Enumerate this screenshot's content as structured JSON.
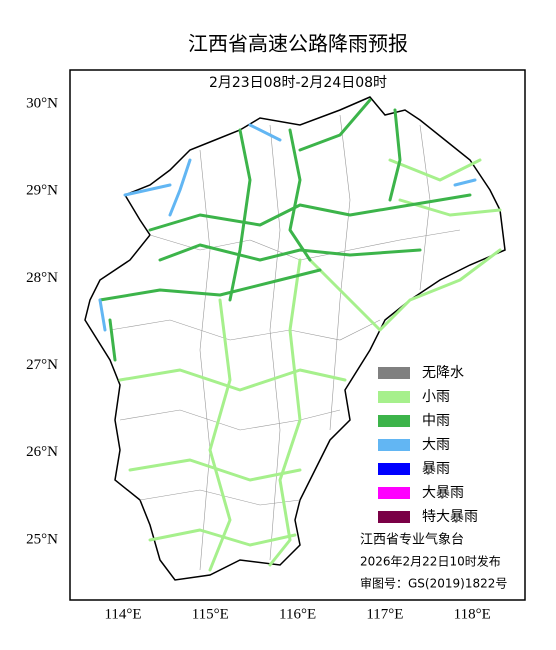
{
  "header": {
    "title": "江西省高速公路降雨预报",
    "subtitle": "2月23日08时-2月24日08时"
  },
  "latitude_labels": [
    "30°N",
    "29°N",
    "28°N",
    "27°N",
    "26°N",
    "25°N"
  ],
  "longitude_labels": [
    "114°E",
    "115°E",
    "116°E",
    "117°E",
    "118°E"
  ],
  "legend": [
    {
      "label": "无降水",
      "color": "#808080"
    },
    {
      "label": "小雨",
      "color": "#a6f08c"
    },
    {
      "label": "中雨",
      "color": "#3cb44a"
    },
    {
      "label": "大雨",
      "color": "#62b6f3"
    },
    {
      "label": "暴雨",
      "color": "#0000ff"
    },
    {
      "label": "大暴雨",
      "color": "#ff00ff"
    },
    {
      "label": "特大暴雨",
      "color": "#7a0046"
    }
  ],
  "footer": {
    "issuer": "江西省专业气象台",
    "issued": "2026年2月22日10时发布",
    "approval": "审图号：GS(2019)1822号"
  }
}
